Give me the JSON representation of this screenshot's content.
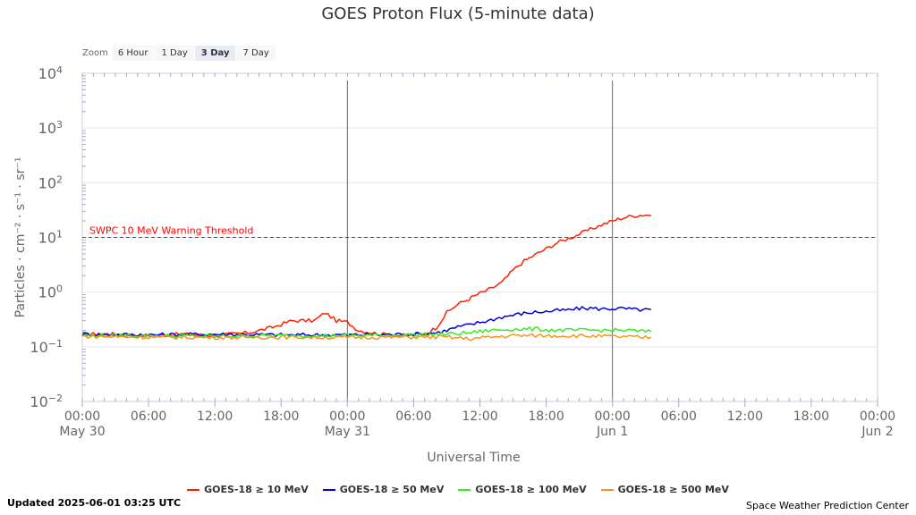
{
  "zoom": {
    "label": "Zoom",
    "buttons": [
      "6 Hour",
      "1 Day",
      "3 Day",
      "7 Day"
    ],
    "selected": "3 Day"
  },
  "footer": {
    "updated": "Updated 2025-06-01 03:25 UTC",
    "credit": "Space Weather Prediction Center"
  },
  "chart_data": {
    "type": "line",
    "title": "GOES Proton Flux (5-minute data)",
    "xlabel": "Universal Time",
    "ylabel": "Particles · cm⁻² · s⁻¹ · sr⁻¹",
    "y_scale": "log",
    "ylim_exponent": [
      -2,
      4
    ],
    "ytick_exponents": [
      -2,
      -1,
      0,
      1,
      2,
      3,
      4
    ],
    "xlim_hours": [
      0,
      72
    ],
    "xticks": [
      {
        "h": 0,
        "time": "00:00",
        "date": "May 30"
      },
      {
        "h": 6,
        "time": "06:00",
        "date": ""
      },
      {
        "h": 12,
        "time": "12:00",
        "date": ""
      },
      {
        "h": 18,
        "time": "18:00",
        "date": ""
      },
      {
        "h": 24,
        "time": "00:00",
        "date": "May 31"
      },
      {
        "h": 30,
        "time": "06:00",
        "date": ""
      },
      {
        "h": 36,
        "time": "12:00",
        "date": ""
      },
      {
        "h": 42,
        "time": "18:00",
        "date": ""
      },
      {
        "h": 48,
        "time": "00:00",
        "date": "Jun 1"
      },
      {
        "h": 54,
        "time": "06:00",
        "date": ""
      },
      {
        "h": 60,
        "time": "12:00",
        "date": ""
      },
      {
        "h": 66,
        "time": "18:00",
        "date": ""
      },
      {
        "h": 72,
        "time": "00:00",
        "date": "Jun 2"
      }
    ],
    "day_lines_hours": [
      24,
      48
    ],
    "threshold": {
      "label": "SWPC 10 MeV Warning Threshold",
      "value": 10,
      "color": "#ff0000"
    },
    "grid": true,
    "legend_position": "bottom",
    "series": [
      {
        "name": "GOES-18 ≥ 10 MeV",
        "color": "#ff2000",
        "points": [
          [
            0,
            0.17
          ],
          [
            3,
            0.17
          ],
          [
            6,
            0.16
          ],
          [
            9,
            0.17
          ],
          [
            12,
            0.16
          ],
          [
            15,
            0.18
          ],
          [
            17,
            0.22
          ],
          [
            19,
            0.3
          ],
          [
            21,
            0.3
          ],
          [
            22,
            0.42
          ],
          [
            23,
            0.3
          ],
          [
            24,
            0.28
          ],
          [
            25,
            0.2
          ],
          [
            27,
            0.17
          ],
          [
            29,
            0.16
          ],
          [
            31,
            0.17
          ],
          [
            32,
            0.22
          ],
          [
            33,
            0.42
          ],
          [
            34,
            0.6
          ],
          [
            35,
            0.75
          ],
          [
            36,
            0.95
          ],
          [
            37,
            1.15
          ],
          [
            38,
            1.5
          ],
          [
            39,
            2.5
          ],
          [
            40,
            3.7
          ],
          [
            41,
            4.8
          ],
          [
            42,
            6.2
          ],
          [
            43,
            8
          ],
          [
            44,
            9.5
          ],
          [
            45,
            11.5
          ],
          [
            46,
            14
          ],
          [
            47,
            17
          ],
          [
            48,
            20
          ],
          [
            49,
            23
          ],
          [
            50,
            25
          ],
          [
            51,
            26
          ],
          [
            51.5,
            25
          ]
        ]
      },
      {
        "name": "GOES-18 ≥ 50 MeV",
        "color": "#0000dd",
        "points": [
          [
            0,
            0.17
          ],
          [
            6,
            0.165
          ],
          [
            12,
            0.17
          ],
          [
            18,
            0.165
          ],
          [
            24,
            0.165
          ],
          [
            30,
            0.17
          ],
          [
            32,
            0.18
          ],
          [
            33,
            0.2
          ],
          [
            34,
            0.23
          ],
          [
            35,
            0.25
          ],
          [
            36,
            0.28
          ],
          [
            37,
            0.31
          ],
          [
            38,
            0.35
          ],
          [
            39,
            0.38
          ],
          [
            40,
            0.41
          ],
          [
            41,
            0.43
          ],
          [
            42,
            0.44
          ],
          [
            43,
            0.46
          ],
          [
            44,
            0.47
          ],
          [
            45,
            0.5
          ],
          [
            46,
            0.51
          ],
          [
            47,
            0.49
          ],
          [
            48,
            0.5
          ],
          [
            49,
            0.5
          ],
          [
            50,
            0.48
          ],
          [
            51,
            0.47
          ],
          [
            51.5,
            0.48
          ]
        ]
      },
      {
        "name": "GOES-18 ≥ 100 MeV",
        "color": "#33ee22",
        "points": [
          [
            0,
            0.16
          ],
          [
            6,
            0.16
          ],
          [
            12,
            0.155
          ],
          [
            18,
            0.16
          ],
          [
            24,
            0.16
          ],
          [
            30,
            0.165
          ],
          [
            33,
            0.17
          ],
          [
            35,
            0.18
          ],
          [
            37,
            0.2
          ],
          [
            39,
            0.21
          ],
          [
            41,
            0.21
          ],
          [
            43,
            0.2
          ],
          [
            45,
            0.2
          ],
          [
            47,
            0.2
          ],
          [
            49,
            0.2
          ],
          [
            51,
            0.19
          ],
          [
            51.5,
            0.19
          ]
        ]
      },
      {
        "name": "GOES-18 ≥ 500 MeV",
        "color": "#f7941d",
        "points": [
          [
            0,
            0.155
          ],
          [
            6,
            0.15
          ],
          [
            12,
            0.148
          ],
          [
            18,
            0.15
          ],
          [
            24,
            0.148
          ],
          [
            30,
            0.15
          ],
          [
            33,
            0.15
          ],
          [
            35,
            0.14
          ],
          [
            37,
            0.15
          ],
          [
            39,
            0.16
          ],
          [
            41,
            0.16
          ],
          [
            43,
            0.16
          ],
          [
            45,
            0.158
          ],
          [
            47,
            0.155
          ],
          [
            49,
            0.152
          ],
          [
            51,
            0.148
          ],
          [
            51.5,
            0.15
          ]
        ]
      }
    ]
  }
}
